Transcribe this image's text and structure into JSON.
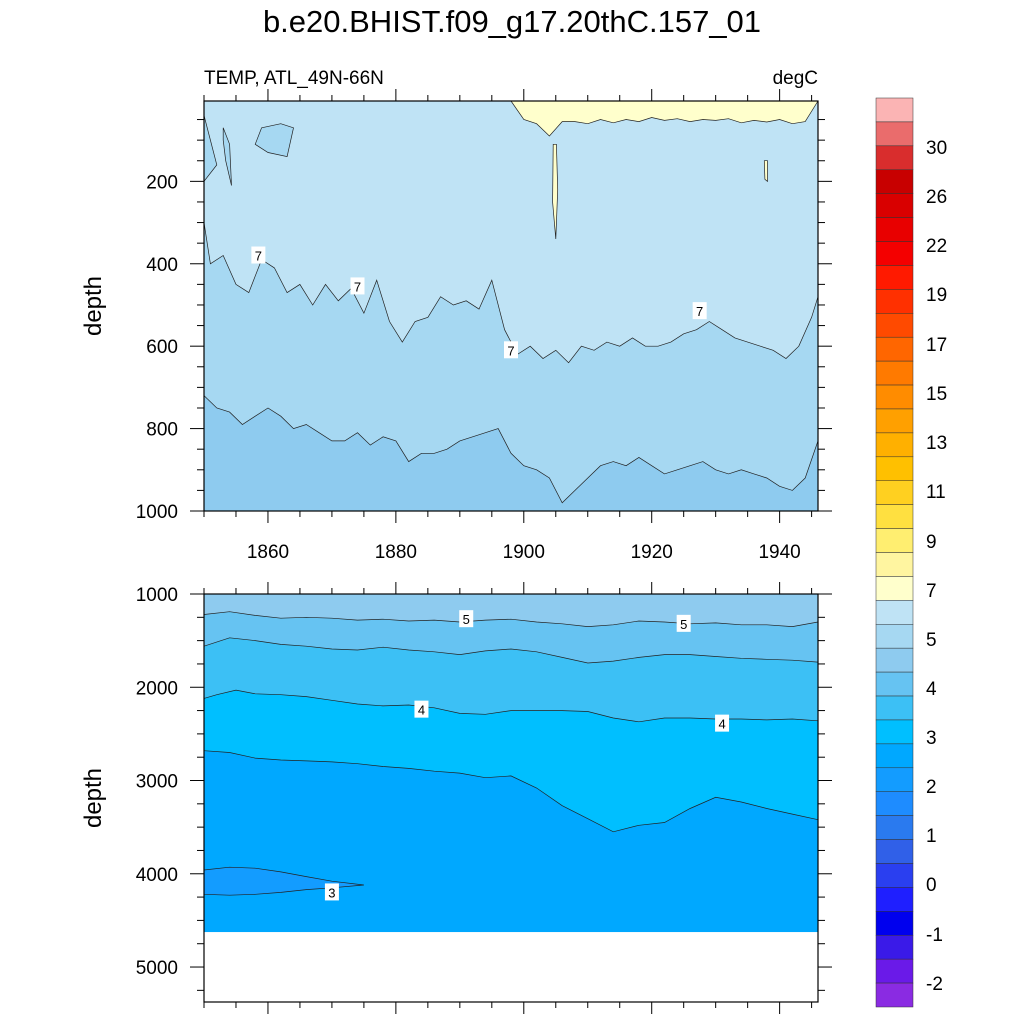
{
  "chart_data": {
    "type": "heatmap",
    "title": "b.e20.BHIST.f09_g17.20thC.157_01",
    "variable_label": "TEMP, ATL_49N-66N",
    "units_label": "degC",
    "colorbar": {
      "labels": [
        "30",
        "26",
        "22",
        "19",
        "17",
        "15",
        "13",
        "11",
        "9",
        "7",
        "5",
        "4",
        "3",
        "2",
        "1",
        "0",
        "-1",
        "-2"
      ],
      "colors": [
        "#fbb4b4",
        "#ea6c6c",
        "#d92d2d",
        "#c80000",
        "#d90000",
        "#e80000",
        "#f40000",
        "#ff1a00",
        "#ff3000",
        "#ff4a00",
        "#ff6600",
        "#ff7a00",
        "#ff8c00",
        "#ffa000",
        "#ffb000",
        "#ffc000",
        "#ffd020",
        "#ffe040",
        "#ffee70",
        "#fff5a0",
        "#ffffcc",
        "#bfe3f5",
        "#a6d8f2",
        "#8ecbef",
        "#66c3f2",
        "#3cc0f5",
        "#00bfff",
        "#00a8ff",
        "#139cff",
        "#1e8cff",
        "#2a7aef",
        "#3060e8",
        "#2a3ff0",
        "#1f1fff",
        "#0000ee",
        "#3a1ae8",
        "#6a1ae8",
        "#8a2be2"
      ]
    },
    "panels": [
      {
        "name": "upper",
        "ylabel": "depth",
        "xlim": [
          1850,
          1946
        ],
        "ylim": [
          1000,
          5
        ],
        "xticks": [
          "1860",
          "1880",
          "1900",
          "1920",
          "1940"
        ],
        "yticks": [
          "200",
          "400",
          "600",
          "800",
          "1000"
        ],
        "contour_labels": [
          "7",
          "7",
          "7",
          "7"
        ],
        "contours": [
          {
            "level": 9,
            "x": [
              1851,
              1855,
              1859,
              1862,
              1864,
              1866,
              1868,
              1870,
              1872,
              1874,
              1876,
              1878,
              1880,
              1882,
              1884,
              1886,
              1888,
              1890,
              1892,
              1894,
              1896,
              1898,
              1900,
              1902,
              1904,
              1906,
              1908,
              1910,
              1912,
              1914,
              1916,
              1918,
              1920,
              1922,
              1924,
              1926,
              1928,
              1930,
              1932,
              1934,
              1936,
              1938,
              1940,
              1942,
              1944,
              1946
            ],
            "depth": [
              5,
              5,
              5,
              5,
              5,
              5,
              5,
              5,
              5,
              5,
              5,
              5,
              5,
              5,
              5,
              5,
              5,
              5,
              5,
              5,
              5,
              5,
              50,
              60,
              90,
              55,
              55,
              60,
              50,
              58,
              50,
              55,
              45,
              52,
              48,
              55,
              50,
              52,
              48,
              58,
              52,
              56,
              50,
              60,
              55,
              5
            ]
          },
          {
            "level": 7,
            "x": [
              1850,
              1851,
              1853,
              1855,
              1857,
              1859,
              1861,
              1863,
              1865,
              1867,
              1869,
              1871,
              1873,
              1875,
              1877,
              1879,
              1881,
              1883,
              1885,
              1887,
              1889,
              1891,
              1893,
              1895,
              1897,
              1899,
              1901,
              1903,
              1905,
              1907,
              1909,
              1911,
              1913,
              1915,
              1917,
              1919,
              1921,
              1923,
              1925,
              1927,
              1929,
              1931,
              1933,
              1935,
              1937,
              1939,
              1941,
              1943,
              1945,
              1946
            ],
            "depth": [
              300,
              400,
              380,
              450,
              470,
              390,
              410,
              470,
              450,
              500,
              450,
              490,
              460,
              520,
              440,
              540,
              590,
              540,
              530,
              480,
              500,
              490,
              510,
              440,
              560,
              620,
              600,
              630,
              610,
              640,
              600,
              610,
              590,
              600,
              580,
              600,
              600,
              590,
              570,
              560,
              540,
              560,
              580,
              590,
              600,
              610,
              630,
              600,
              530,
              480
            ]
          },
          {
            "level": 6,
            "x": [
              1850,
              1852,
              1854,
              1856,
              1858,
              1860,
              1862,
              1864,
              1866,
              1868,
              1870,
              1872,
              1874,
              1876,
              1878,
              1880,
              1882,
              1884,
              1886,
              1888,
              1890,
              1892,
              1894,
              1896,
              1898,
              1900,
              1902,
              1904,
              1906,
              1908,
              1910,
              1912,
              1914,
              1916,
              1918,
              1920,
              1922,
              1924,
              1926,
              1928,
              1930,
              1932,
              1934,
              1936,
              1938,
              1940,
              1942,
              1944,
              1946
            ],
            "depth": [
              720,
              750,
              760,
              790,
              770,
              750,
              770,
              800,
              790,
              810,
              830,
              830,
              810,
              840,
              820,
              830,
              880,
              860,
              860,
              850,
              830,
              820,
              810,
              800,
              860,
              890,
              900,
              920,
              980,
              950,
              920,
              890,
              880,
              890,
              870,
              890,
              910,
              900,
              890,
              880,
              900,
              910,
              900,
              910,
              920,
              940,
              950,
              920,
              830
            ]
          }
        ]
      },
      {
        "name": "lower",
        "ylabel": "depth",
        "xlim": [
          1850,
          1946
        ],
        "ylim": [
          5375,
          1000
        ],
        "yticks": [
          "1000",
          "2000",
          "3000",
          "4000",
          "5000"
        ],
        "ocean_floor_depth": 4625,
        "contour_labels": [
          "5",
          "5",
          "4",
          "4",
          "3"
        ],
        "contours": [
          {
            "level": 5.5,
            "x": [
              1850,
              1854,
              1858,
              1862,
              1866,
              1870,
              1874,
              1878,
              1882,
              1886,
              1890,
              1894,
              1898,
              1902,
              1906,
              1910,
              1914,
              1918,
              1922,
              1926,
              1930,
              1934,
              1938,
              1942,
              1946
            ],
            "depth": [
              1220,
              1190,
              1230,
              1260,
              1250,
              1260,
              1280,
              1270,
              1290,
              1280,
              1300,
              1280,
              1270,
              1300,
              1320,
              1350,
              1330,
              1290,
              1300,
              1320,
              1310,
              1330,
              1330,
              1350,
              1300
            ]
          },
          {
            "level": 5,
            "x": [
              1850,
              1854,
              1858,
              1862,
              1866,
              1870,
              1874,
              1878,
              1882,
              1886,
              1890,
              1894,
              1898,
              1902,
              1906,
              1910,
              1914,
              1918,
              1922,
              1926,
              1930,
              1934,
              1938,
              1942,
              1946
            ],
            "depth": [
              1560,
              1470,
              1500,
              1540,
              1560,
              1590,
              1600,
              1570,
              1600,
              1620,
              1650,
              1610,
              1590,
              1620,
              1680,
              1740,
              1720,
              1680,
              1650,
              1650,
              1670,
              1690,
              1700,
              1710,
              1730
            ]
          },
          {
            "level": 4,
            "x": [
              1850,
              1852,
              1855,
              1858,
              1862,
              1866,
              1870,
              1874,
              1878,
              1882,
              1886,
              1890,
              1894,
              1898,
              1902,
              1906,
              1910,
              1914,
              1918,
              1922,
              1926,
              1930,
              1934,
              1938,
              1942,
              1946
            ],
            "depth": [
              2120,
              2080,
              2030,
              2070,
              2080,
              2100,
              2140,
              2180,
              2200,
              2190,
              2220,
              2280,
              2290,
              2250,
              2250,
              2250,
              2260,
              2330,
              2370,
              2330,
              2330,
              2340,
              2340,
              2350,
              2340,
              2360
            ]
          },
          {
            "level": 3.5,
            "x": [
              1850,
              1854,
              1858,
              1862,
              1866,
              1870,
              1874,
              1878,
              1882,
              1886,
              1890,
              1894,
              1898,
              1902,
              1906,
              1910,
              1914,
              1918,
              1922,
              1926,
              1930,
              1934,
              1938,
              1942,
              1946
            ],
            "depth": [
              2680,
              2700,
              2760,
              2780,
              2790,
              2800,
              2820,
              2850,
              2870,
              2900,
              2920,
              2970,
              2950,
              3080,
              3270,
              3410,
              3550,
              3480,
              3450,
              3300,
              3180,
              3230,
              3300,
              3360,
              3420
            ]
          },
          {
            "level": 3,
            "x": [
              1850,
              1854,
              1858,
              1862,
              1866,
              1870,
              1875,
              1870,
              1866,
              1862,
              1858,
              1854,
              1850
            ],
            "depth": [
              3960,
              3930,
              3940,
              3980,
              4030,
              4080,
              4120,
              4150,
              4170,
              4200,
              4220,
              4230,
              4220
            ]
          }
        ]
      }
    ]
  }
}
